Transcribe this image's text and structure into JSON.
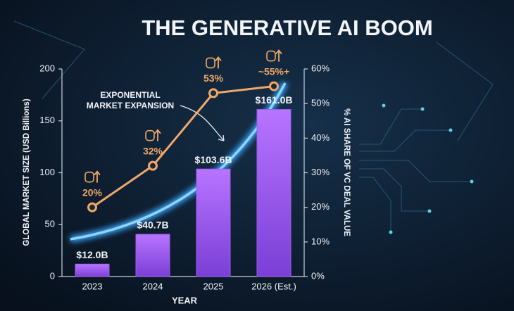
{
  "chart_data": {
    "type": "bar",
    "title": "THE GENERATIVE AI BOOM",
    "x_label": "YEAR",
    "y_label": "GLOBAL MARKET SIZE (USD Billions)",
    "y2_label": "% AI SHARE OF VC DEAL VALUE",
    "annotation": [
      "EXPONENTIAL",
      "MARKET EXPANSION"
    ],
    "categories": [
      "2023",
      "2024",
      "2025",
      "2026 (Est.)"
    ],
    "series": [
      {
        "type": "bar",
        "color": "#9d5cf2",
        "values": [
          12.0,
          40.7,
          103.6,
          161.0
        ],
        "value_labels": [
          "$12.0B",
          "$40.7B",
          "$103.6B",
          "$161.0B"
        ]
      },
      {
        "type": "line",
        "axis": "y2",
        "color": "#f0a868",
        "values": [
          20,
          32,
          53,
          55
        ],
        "value_labels": [
          "20%",
          "32%",
          "53%",
          "~55%+"
        ]
      }
    ],
    "ylim": [
      0,
      200
    ],
    "yticks": [
      0,
      50,
      100,
      150,
      200
    ],
    "y2lim": [
      0,
      60
    ],
    "y2ticks": [
      {
        "value": 0,
        "label": "0%"
      },
      {
        "value": 10,
        "label": "10%"
      },
      {
        "value": 20,
        "label": "20%"
      },
      {
        "value": 30,
        "label": "30%"
      },
      {
        "value": 40,
        "label": "40%"
      },
      {
        "value": 50,
        "label": "50%"
      },
      {
        "value": 60,
        "label": "60%"
      }
    ]
  }
}
